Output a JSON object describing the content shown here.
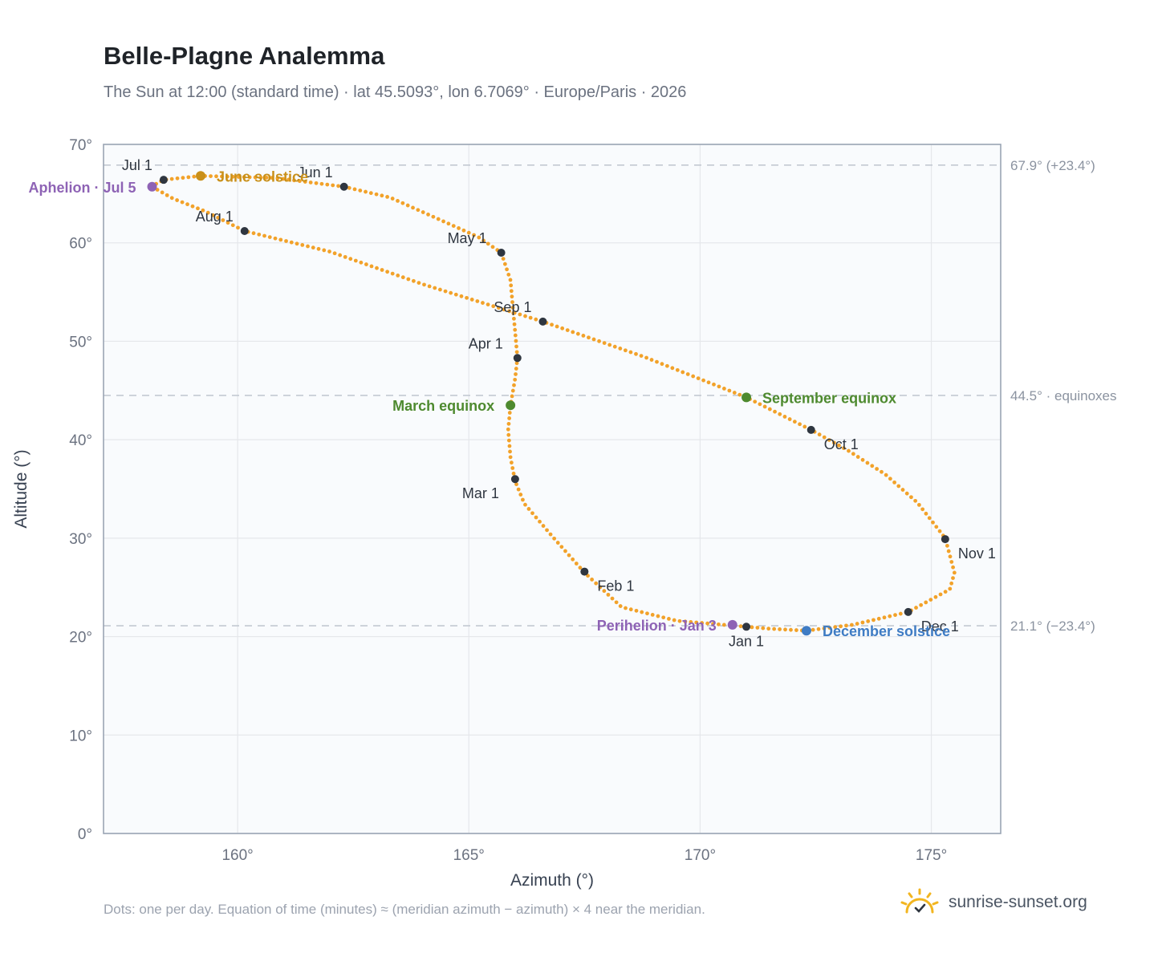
{
  "title": "Belle-Plagne Analemma",
  "subtitle": "The Sun at 12:00 (standard time) · lat 45.5093°, lon 6.7069° · Europe/Paris · 2026",
  "footnote": "Dots: one per day. Equation of time (minutes) ≈ (meridian azimuth − azimuth) × 4 near the meridian.",
  "brand": "sunrise-sunset.org",
  "colors": {
    "path": "#f2a22a",
    "month_dot": "#2f3640",
    "june_solstice": "#c9901a",
    "december_solstice": "#3f7cc4",
    "equinox": "#4e8a2f",
    "aphelion_perihelion": "#8e63b5",
    "grid": "#e5e7eb",
    "plot_bg": "#f9fbfd",
    "frame": "#9aa5b4"
  },
  "chart_data": {
    "type": "scatter",
    "xlabel": "Azimuth (°)",
    "ylabel": "Altitude (°)",
    "xlim": [
      157.1,
      176.5
    ],
    "ylim": [
      0,
      70
    ],
    "xticks": [
      {
        "v": 160,
        "label": "160°"
      },
      {
        "v": 165,
        "label": "165°"
      },
      {
        "v": 170,
        "label": "170°"
      },
      {
        "v": 175,
        "label": "175°"
      }
    ],
    "yticks": [
      {
        "v": 0,
        "label": "0°"
      },
      {
        "v": 10,
        "label": "10°"
      },
      {
        "v": 20,
        "label": "20°"
      },
      {
        "v": 30,
        "label": "30°"
      },
      {
        "v": 40,
        "label": "40°"
      },
      {
        "v": 50,
        "label": "50°"
      },
      {
        "v": 60,
        "label": "60°"
      },
      {
        "v": 70,
        "label": "70°"
      }
    ],
    "grid": true,
    "reference_lines": [
      {
        "y": 67.9,
        "label": "67.9° (+23.4°)"
      },
      {
        "y": 44.5,
        "label": "44.5° · equinoxes"
      },
      {
        "y": 21.1,
        "label": "21.1° (−23.4°)"
      }
    ],
    "path_points": [
      [
        171.0,
        21.0
      ],
      [
        169.5,
        21.6
      ],
      [
        168.3,
        23.0
      ],
      [
        167.5,
        26.5
      ],
      [
        166.8,
        30.2
      ],
      [
        166.2,
        33.5
      ],
      [
        166.0,
        35.8
      ],
      [
        165.9,
        38.2
      ],
      [
        165.85,
        41.0
      ],
      [
        165.9,
        43.5
      ],
      [
        166.0,
        46.2
      ],
      [
        166.05,
        48.3
      ],
      [
        166.0,
        51.0
      ],
      [
        165.95,
        53.5
      ],
      [
        165.9,
        56.2
      ],
      [
        165.7,
        59.0
      ],
      [
        165.2,
        60.6
      ],
      [
        164.3,
        62.5
      ],
      [
        163.3,
        64.6
      ],
      [
        162.3,
        65.7
      ],
      [
        160.8,
        66.6
      ],
      [
        159.2,
        66.8
      ],
      [
        158.4,
        66.4
      ],
      [
        158.2,
        65.9
      ],
      [
        158.15,
        65.7
      ],
      [
        158.6,
        64.5
      ],
      [
        159.3,
        63.2
      ],
      [
        160.15,
        61.2
      ],
      [
        162.0,
        59.1
      ],
      [
        164.0,
        55.8
      ],
      [
        166.6,
        52.0
      ],
      [
        168.8,
        48.4
      ],
      [
        171.0,
        44.3
      ],
      [
        172.4,
        41.0
      ],
      [
        173.2,
        38.9
      ],
      [
        174.0,
        36.5
      ],
      [
        174.7,
        33.6
      ],
      [
        175.3,
        30.0
      ],
      [
        175.5,
        26.5
      ],
      [
        175.4,
        24.8
      ],
      [
        174.5,
        22.5
      ],
      [
        173.3,
        21.2
      ],
      [
        172.3,
        20.6
      ],
      [
        171.5,
        20.8
      ],
      [
        171.0,
        21.0
      ]
    ],
    "months": [
      {
        "label": "Jan 1",
        "x": 171.0,
        "y": 21.0,
        "pos": "below"
      },
      {
        "label": "Feb 1",
        "x": 167.5,
        "y": 26.6,
        "pos": "below-right"
      },
      {
        "label": "Mar 1",
        "x": 166.0,
        "y": 36.0,
        "pos": "left-below"
      },
      {
        "label": "Apr 1",
        "x": 166.05,
        "y": 48.3,
        "pos": "left-above"
      },
      {
        "label": "May 1",
        "x": 165.7,
        "y": 59.0,
        "pos": "left-above"
      },
      {
        "label": "Jun 1",
        "x": 162.3,
        "y": 65.7,
        "pos": "above-left"
      },
      {
        "label": "Jul 1",
        "x": 158.4,
        "y": 66.4,
        "pos": "above-left"
      },
      {
        "label": "Aug 1",
        "x": 160.15,
        "y": 61.2,
        "pos": "above-left"
      },
      {
        "label": "Sep 1",
        "x": 166.6,
        "y": 52.0,
        "pos": "above-left"
      },
      {
        "label": "Oct 1",
        "x": 172.4,
        "y": 41.0,
        "pos": "below-right"
      },
      {
        "label": "Nov 1",
        "x": 175.3,
        "y": 29.9,
        "pos": "right-below"
      },
      {
        "label": "Dec 1",
        "x": 174.5,
        "y": 22.5,
        "pos": "below-right"
      }
    ],
    "events": [
      {
        "label": "June solstice",
        "x": 159.2,
        "y": 66.8,
        "color_key": "june_solstice",
        "pos": "right"
      },
      {
        "label": "December solstice",
        "x": 172.3,
        "y": 20.6,
        "color_key": "december_solstice",
        "pos": "right"
      },
      {
        "label": "March equinox",
        "x": 165.9,
        "y": 43.5,
        "color_key": "equinox",
        "pos": "left"
      },
      {
        "label": "September equinox",
        "x": 171.0,
        "y": 44.3,
        "color_key": "equinox",
        "pos": "right"
      },
      {
        "label": "Aphelion · Jul 5",
        "x": 158.15,
        "y": 65.7,
        "color_key": "aphelion_perihelion",
        "pos": "left"
      },
      {
        "label": "Perihelion · Jan 3",
        "x": 170.7,
        "y": 21.2,
        "color_key": "aphelion_perihelion",
        "pos": "left"
      }
    ]
  }
}
